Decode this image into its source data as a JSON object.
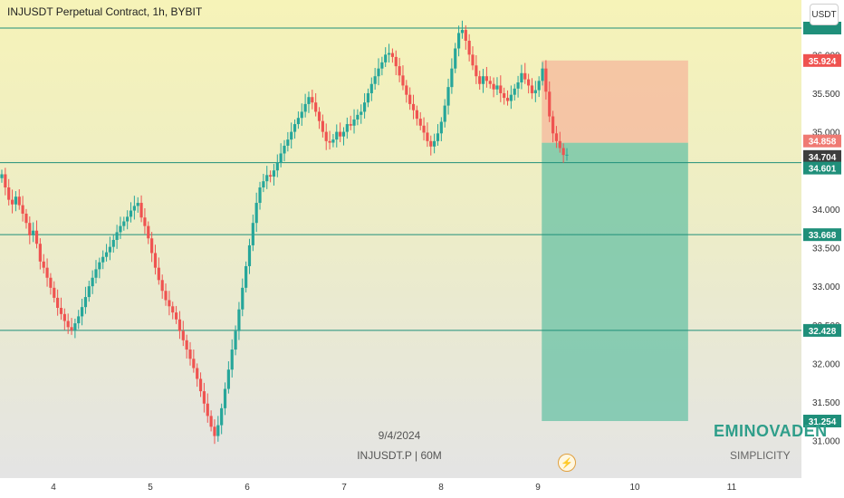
{
  "header": {
    "title": "INJUSDT Perpetual Contract, 1h, BYBIT",
    "currency": "USDT"
  },
  "watermark": {
    "date": "9/4/2024",
    "symbol": "INJUSDT.P | 60M"
  },
  "branding": {
    "name": "EMINOVADEN",
    "tagline": "SIMPLICITY"
  },
  "colors": {
    "up": "#26a69a",
    "down": "#ef5350",
    "hline": "#1f8f7a",
    "stop_zone": "#f6b79c",
    "target_zone": "#5fbfa2"
  },
  "chart_data": {
    "type": "candlestick",
    "x_ticks": [
      "4",
      "5",
      "6",
      "7",
      "8",
      "9",
      "10",
      "11"
    ],
    "y_ticks": [
      "31.000",
      "31.500",
      "32.000",
      "32.500",
      "33.000",
      "33.500",
      "34.000",
      "34.500",
      "35.000",
      "35.500",
      "36.000"
    ],
    "ylim": [
      30.9,
      37.6
    ],
    "horizontal_levels": [
      36.344,
      34.601,
      33.668,
      32.428
    ],
    "price_labels": [
      {
        "value": 35.924,
        "text": "35.924",
        "kind": "stop"
      },
      {
        "value": 34.858,
        "text": "34.858",
        "kind": "entry"
      },
      {
        "value": 34.704,
        "text": "34.704",
        "kind": "last"
      },
      {
        "value": 34.601,
        "text": "34.601",
        "kind": "level"
      },
      {
        "value": 33.668,
        "text": "33.668",
        "kind": "level"
      },
      {
        "value": 32.428,
        "text": "32.428",
        "kind": "level"
      },
      {
        "value": 31.254,
        "text": "31.254",
        "kind": "target"
      }
    ],
    "position": {
      "side": "short",
      "x_start": 9.04,
      "x_end": 10.55,
      "entry": 34.858,
      "stop": 35.924,
      "target": 31.254
    },
    "close": [
      34.45,
      34.28,
      34.12,
      34.06,
      34.16,
      34.05,
      33.94,
      33.82,
      33.66,
      33.72,
      33.55,
      33.32,
      33.24,
      33.11,
      32.98,
      32.85,
      32.72,
      32.64,
      32.55,
      32.47,
      32.43,
      32.52,
      32.61,
      32.73,
      32.86,
      33.0,
      33.11,
      33.22,
      33.31,
      33.38,
      33.44,
      33.51,
      33.6,
      33.7,
      33.78,
      33.84,
      33.9,
      33.98,
      34.04,
      34.08,
      33.89,
      33.78,
      33.62,
      33.43,
      33.24,
      33.08,
      32.94,
      32.82,
      32.74,
      32.66,
      32.57,
      32.42,
      32.3,
      32.18,
      32.06,
      31.94,
      31.8,
      31.64,
      31.48,
      31.32,
      31.18,
      31.06,
      31.2,
      31.42,
      31.67,
      31.92,
      32.18,
      32.42,
      32.7,
      32.98,
      33.26,
      33.53,
      33.82,
      34.08,
      34.28,
      34.36,
      34.44,
      34.42,
      34.5,
      34.6,
      34.72,
      34.82,
      34.9,
      35.0,
      35.1,
      35.18,
      35.26,
      35.36,
      35.45,
      35.38,
      35.26,
      35.14,
      35.0,
      34.88,
      34.86,
      34.9,
      35.0,
      34.94,
      35.0,
      35.1,
      35.08,
      35.16,
      35.22,
      35.26,
      35.38,
      35.5,
      35.62,
      35.72,
      35.82,
      35.9,
      36.0,
      36.02,
      35.97,
      35.85,
      35.73,
      35.6,
      35.48,
      35.36,
      35.28,
      35.17,
      35.08,
      34.99,
      34.88,
      34.81,
      34.88,
      34.98,
      35.13,
      35.34,
      35.58,
      35.82,
      36.08,
      36.28,
      36.32,
      36.18,
      36.0,
      35.86,
      35.72,
      35.62,
      35.72,
      35.66,
      35.62,
      35.55,
      35.6,
      35.5,
      35.44,
      35.4,
      35.48,
      35.56,
      35.64,
      35.76,
      35.68,
      35.6,
      35.5,
      35.54,
      35.66,
      35.82,
      35.52,
      35.2,
      34.98,
      34.88,
      34.79,
      34.7,
      34.704
    ]
  }
}
